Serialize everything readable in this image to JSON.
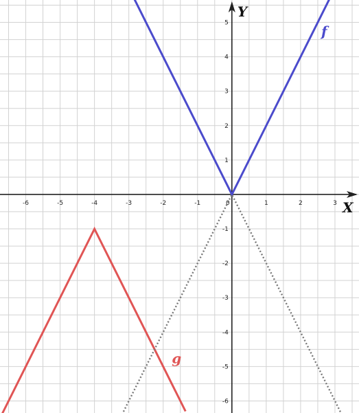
{
  "chart_data": {
    "type": "line",
    "xlabel": "X",
    "ylabel": "Y",
    "xlim": [
      -6.75,
      3.7
    ],
    "ylim": [
      -6.35,
      5.65
    ],
    "x_ticks": [
      -6,
      -5,
      -4,
      -3,
      -2,
      -1,
      0,
      1,
      2,
      3
    ],
    "y_ticks": [
      -6,
      -5,
      -4,
      -3,
      -2,
      -1,
      1,
      2,
      3,
      4,
      5
    ],
    "x_tick_labels": [
      "-6",
      "-5",
      "-4",
      "-3",
      "-2",
      "-1",
      "0",
      "1",
      "2",
      "3"
    ],
    "y_tick_labels": [
      "-6",
      "-5",
      "-4",
      "-3",
      "-2",
      "-1",
      "1",
      "2",
      "3",
      "4",
      "5"
    ],
    "grid": true,
    "series": [
      {
        "name": "f",
        "color": "#4b4bcc",
        "style": "solid",
        "x": [
          -2.85,
          0,
          2.85
        ],
        "y": [
          5.7,
          0,
          5.7
        ],
        "label_pos": [
          2.6,
          4.6
        ]
      },
      {
        "name": "g",
        "color": "#e05555",
        "style": "solid",
        "x": [
          -6.75,
          -4,
          -1.35
        ],
        "y": [
          -6.5,
          -1,
          -6.3
        ],
        "label_pos": [
          -1.75,
          -4.9
        ]
      },
      {
        "name": "",
        "color": "#777777",
        "style": "dotted",
        "x": [
          -3.2,
          0,
          3.2
        ],
        "y": [
          -6.4,
          0,
          -6.4
        ]
      }
    ]
  }
}
